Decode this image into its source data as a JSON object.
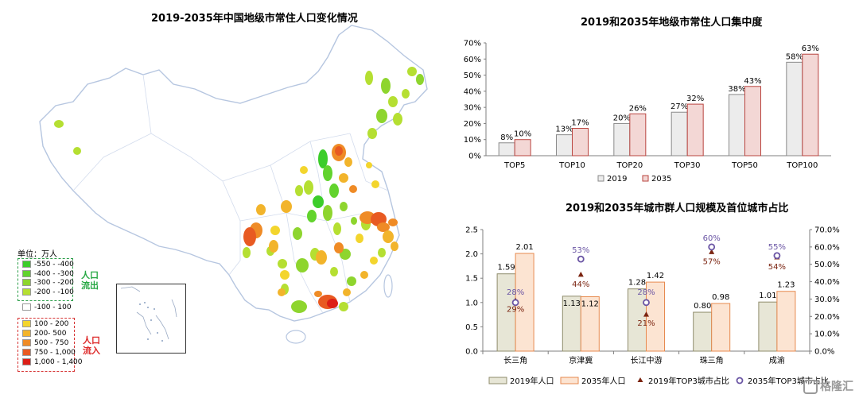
{
  "map": {
    "title": "2019-2035年中国地级市常住人口变化情况",
    "unit_label": "单位：万人",
    "outflow_label": "人口流出",
    "inflow_label": "人口流入",
    "outflow_colors": [
      "#3ccd2a",
      "#62d32d",
      "#8ed52e",
      "#b5df32"
    ],
    "neutral_color": "#ffffff",
    "inflow_colors": [
      "#f3d52d",
      "#f2b42b",
      "#ef8b26",
      "#e85a22",
      "#dc1e16"
    ],
    "legend_outflow": [
      "-550 - -400",
      "-400 - -300",
      "-300 - -200",
      "-200 - -100"
    ],
    "legend_neutral": "-100 - 100",
    "legend_inflow": [
      "100 - 200",
      "200- 500",
      "500 - 750",
      "750 - 1,000",
      "1,000 - 1,400"
    ]
  },
  "chart_data": [
    {
      "type": "bar",
      "title": "2019和2035年地级市常住人口集中度",
      "categories": [
        "TOP5",
        "TOP10",
        "TOP20",
        "TOP30",
        "TOP50",
        "TOP100"
      ],
      "series": [
        {
          "name": "2019",
          "values": [
            8,
            13,
            20,
            27,
            38,
            58
          ],
          "labels": [
            "8%",
            "13%",
            "20%",
            "27%",
            "38%",
            "58%"
          ],
          "color": "#ececec",
          "stroke": "#8a8a8a"
        },
        {
          "name": "2035",
          "values": [
            10,
            17,
            26,
            32,
            43,
            63
          ],
          "labels": [
            "10%",
            "17%",
            "26%",
            "32%",
            "43%",
            "63%"
          ],
          "color": "#f3d7d5",
          "stroke": "#b9443f"
        }
      ],
      "ylim": [
        0,
        70
      ],
      "yticks": [
        "0%",
        "10%",
        "20%",
        "30%",
        "40%",
        "50%",
        "60%",
        "70%"
      ],
      "legend_position": "bottom"
    },
    {
      "type": "bar",
      "title": "2019和2035年城市群人口规模及首位城市占比",
      "categories": [
        "长三角",
        "京津冀",
        "长江中游",
        "珠三角",
        "成渝"
      ],
      "series": [
        {
          "name": "2019年人口",
          "values": [
            1.59,
            1.13,
            1.28,
            0.8,
            1.01
          ],
          "labels": [
            "1.59",
            "1.13",
            "1.28",
            "0.80",
            "1.01"
          ],
          "color": "#e7e6d6",
          "stroke": "#8f8c6c"
        },
        {
          "name": "2035年人口",
          "values": [
            2.01,
            1.12,
            1.42,
            0.98,
            1.23
          ],
          "labels": [
            "2.01",
            "1.12",
            "1.42",
            "0.98",
            "1.23"
          ],
          "color": "#fce4d2",
          "stroke": "#e78a4f"
        }
      ],
      "scatter_series": [
        {
          "name": "2019年TOP3城市占比",
          "values": [
            29,
            44,
            21,
            57,
            54
          ],
          "labels": [
            "29%",
            "44%",
            "21%",
            "57%",
            "54%"
          ],
          "color": "#7b2410",
          "marker": "triangle"
        },
        {
          "name": "2035年TOP3城市占比",
          "values": [
            28,
            53,
            28,
            60,
            55
          ],
          "labels": [
            "28%",
            "53%",
            "28%",
            "60%",
            "55%"
          ],
          "color": "#6a55a4",
          "marker": "circle"
        }
      ],
      "ylim_left": [
        0,
        2.5
      ],
      "ylim_right": [
        0,
        70
      ],
      "yticks_left": [
        "0.0",
        "0.5",
        "1.0",
        "1.5",
        "2.0",
        "2.5"
      ],
      "yticks_right": [
        "0.0%",
        "10.0%",
        "20.0%",
        "30.0%",
        "40.0%",
        "50.0%",
        "60.0%",
        "70.0%"
      ],
      "legend_position": "bottom"
    }
  ],
  "watermark": "格隆汇"
}
